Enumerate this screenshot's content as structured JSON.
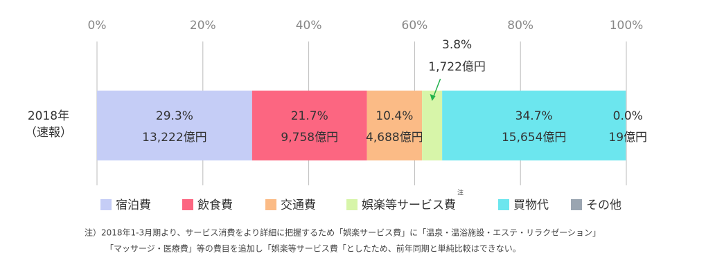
{
  "chart_data": {
    "type": "stacked-bar-horizontal",
    "categories": [
      [
        "2018年",
        "（速報）"
      ]
    ],
    "series": [
      {
        "name": "宿泊費",
        "color": "#c5cdf6",
        "values": [
          29.3
        ],
        "value_labels": [
          "29.3%"
        ],
        "amount_labels": [
          "13,222億円"
        ]
      },
      {
        "name": "飲食費",
        "color": "#fc6681",
        "values": [
          21.7
        ],
        "value_labels": [
          "21.7%"
        ],
        "amount_labels": [
          "9,758億円"
        ]
      },
      {
        "name": "交通費",
        "color": "#fbbb86",
        "values": [
          10.4
        ],
        "value_labels": [
          "10.4%"
        ],
        "amount_labels": [
          "4,688億円"
        ]
      },
      {
        "name": "娯楽等サービス費",
        "note_mark": "注",
        "color": "#d7f5a9",
        "values": [
          3.8
        ],
        "value_labels": [
          "3.8%"
        ],
        "amount_labels": [
          "1,722億円"
        ]
      },
      {
        "name": "買物代",
        "color": "#6ce6ee",
        "values": [
          34.7
        ],
        "value_labels": [
          "34.7%"
        ],
        "amount_labels": [
          "15,654億円"
        ]
      },
      {
        "name": "その他",
        "color": "#9aa5b1",
        "values": [
          0.0
        ],
        "value_labels": [
          "0.0%"
        ],
        "amount_labels": [
          "19億円"
        ]
      }
    ],
    "xlim": [
      0,
      100
    ],
    "xticks": [
      {
        "value": 0,
        "label": "0%"
      },
      {
        "value": 20,
        "label": "20%"
      },
      {
        "value": 40,
        "label": "40%"
      },
      {
        "value": 60,
        "label": "60%"
      },
      {
        "value": 80,
        "label": "80%"
      },
      {
        "value": 100,
        "label": "100%"
      }
    ],
    "grid": true,
    "note": [
      "注）2018年1-3月期より、サービス消費をより詳細に把握するため「娯楽サービス費」に「温泉・温浴施設・エステ・リラクゼーション」",
      "「マッサージ・医療費」等の費目を追加し「娯楽等サービス費「としたため、前年同期と単純比較はできない。"
    ]
  }
}
